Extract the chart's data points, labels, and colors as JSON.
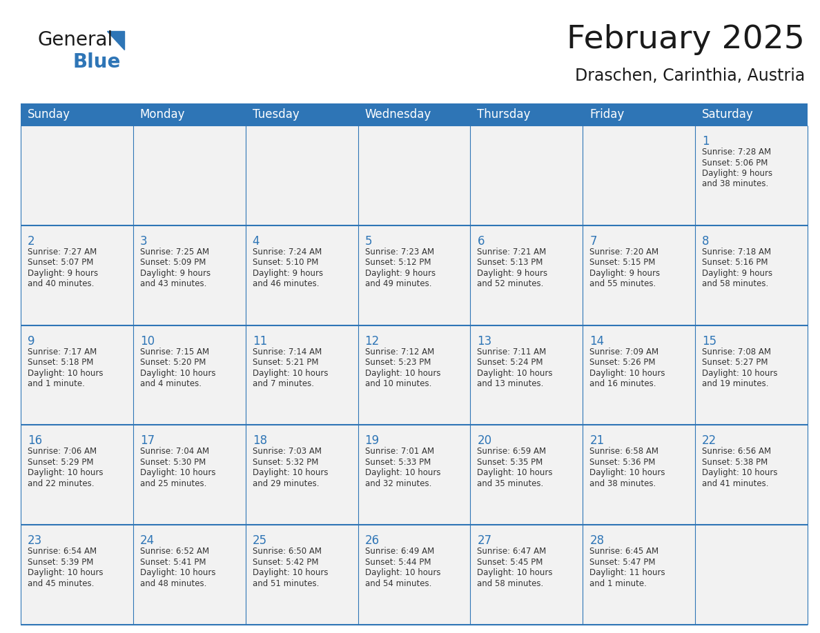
{
  "title": "February 2025",
  "subtitle": "Draschen, Carinthia, Austria",
  "header_bg": "#2E75B6",
  "header_text_color": "#FFFFFF",
  "header_font_size": 12,
  "title_font_size": 34,
  "subtitle_font_size": 17,
  "day_names": [
    "Sunday",
    "Monday",
    "Tuesday",
    "Wednesday",
    "Thursday",
    "Friday",
    "Saturday"
  ],
  "cell_text_color": "#333333",
  "day_num_color": "#2E75B6",
  "line_color": "#2E75B6",
  "bg_color": "#FFFFFF",
  "cell_bg": "#f2f2f2",
  "weeks": [
    [
      {
        "day": "",
        "info": ""
      },
      {
        "day": "",
        "info": ""
      },
      {
        "day": "",
        "info": ""
      },
      {
        "day": "",
        "info": ""
      },
      {
        "day": "",
        "info": ""
      },
      {
        "day": "",
        "info": ""
      },
      {
        "day": "1",
        "info": "Sunrise: 7:28 AM\nSunset: 5:06 PM\nDaylight: 9 hours\nand 38 minutes."
      }
    ],
    [
      {
        "day": "2",
        "info": "Sunrise: 7:27 AM\nSunset: 5:07 PM\nDaylight: 9 hours\nand 40 minutes."
      },
      {
        "day": "3",
        "info": "Sunrise: 7:25 AM\nSunset: 5:09 PM\nDaylight: 9 hours\nand 43 minutes."
      },
      {
        "day": "4",
        "info": "Sunrise: 7:24 AM\nSunset: 5:10 PM\nDaylight: 9 hours\nand 46 minutes."
      },
      {
        "day": "5",
        "info": "Sunrise: 7:23 AM\nSunset: 5:12 PM\nDaylight: 9 hours\nand 49 minutes."
      },
      {
        "day": "6",
        "info": "Sunrise: 7:21 AM\nSunset: 5:13 PM\nDaylight: 9 hours\nand 52 minutes."
      },
      {
        "day": "7",
        "info": "Sunrise: 7:20 AM\nSunset: 5:15 PM\nDaylight: 9 hours\nand 55 minutes."
      },
      {
        "day": "8",
        "info": "Sunrise: 7:18 AM\nSunset: 5:16 PM\nDaylight: 9 hours\nand 58 minutes."
      }
    ],
    [
      {
        "day": "9",
        "info": "Sunrise: 7:17 AM\nSunset: 5:18 PM\nDaylight: 10 hours\nand 1 minute."
      },
      {
        "day": "10",
        "info": "Sunrise: 7:15 AM\nSunset: 5:20 PM\nDaylight: 10 hours\nand 4 minutes."
      },
      {
        "day": "11",
        "info": "Sunrise: 7:14 AM\nSunset: 5:21 PM\nDaylight: 10 hours\nand 7 minutes."
      },
      {
        "day": "12",
        "info": "Sunrise: 7:12 AM\nSunset: 5:23 PM\nDaylight: 10 hours\nand 10 minutes."
      },
      {
        "day": "13",
        "info": "Sunrise: 7:11 AM\nSunset: 5:24 PM\nDaylight: 10 hours\nand 13 minutes."
      },
      {
        "day": "14",
        "info": "Sunrise: 7:09 AM\nSunset: 5:26 PM\nDaylight: 10 hours\nand 16 minutes."
      },
      {
        "day": "15",
        "info": "Sunrise: 7:08 AM\nSunset: 5:27 PM\nDaylight: 10 hours\nand 19 minutes."
      }
    ],
    [
      {
        "day": "16",
        "info": "Sunrise: 7:06 AM\nSunset: 5:29 PM\nDaylight: 10 hours\nand 22 minutes."
      },
      {
        "day": "17",
        "info": "Sunrise: 7:04 AM\nSunset: 5:30 PM\nDaylight: 10 hours\nand 25 minutes."
      },
      {
        "day": "18",
        "info": "Sunrise: 7:03 AM\nSunset: 5:32 PM\nDaylight: 10 hours\nand 29 minutes."
      },
      {
        "day": "19",
        "info": "Sunrise: 7:01 AM\nSunset: 5:33 PM\nDaylight: 10 hours\nand 32 minutes."
      },
      {
        "day": "20",
        "info": "Sunrise: 6:59 AM\nSunset: 5:35 PM\nDaylight: 10 hours\nand 35 minutes."
      },
      {
        "day": "21",
        "info": "Sunrise: 6:58 AM\nSunset: 5:36 PM\nDaylight: 10 hours\nand 38 minutes."
      },
      {
        "day": "22",
        "info": "Sunrise: 6:56 AM\nSunset: 5:38 PM\nDaylight: 10 hours\nand 41 minutes."
      }
    ],
    [
      {
        "day": "23",
        "info": "Sunrise: 6:54 AM\nSunset: 5:39 PM\nDaylight: 10 hours\nand 45 minutes."
      },
      {
        "day": "24",
        "info": "Sunrise: 6:52 AM\nSunset: 5:41 PM\nDaylight: 10 hours\nand 48 minutes."
      },
      {
        "day": "25",
        "info": "Sunrise: 6:50 AM\nSunset: 5:42 PM\nDaylight: 10 hours\nand 51 minutes."
      },
      {
        "day": "26",
        "info": "Sunrise: 6:49 AM\nSunset: 5:44 PM\nDaylight: 10 hours\nand 54 minutes."
      },
      {
        "day": "27",
        "info": "Sunrise: 6:47 AM\nSunset: 5:45 PM\nDaylight: 10 hours\nand 58 minutes."
      },
      {
        "day": "28",
        "info": "Sunrise: 6:45 AM\nSunset: 5:47 PM\nDaylight: 11 hours\nand 1 minute."
      },
      {
        "day": "",
        "info": ""
      }
    ]
  ]
}
